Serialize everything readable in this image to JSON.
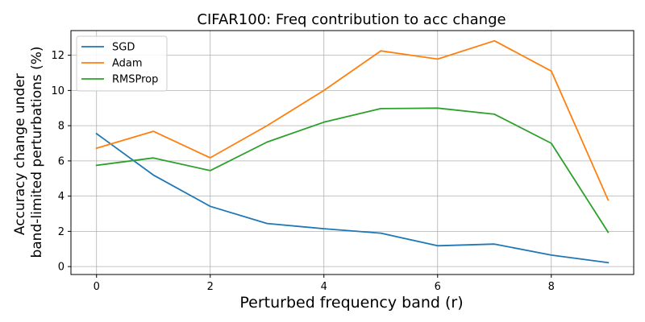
{
  "chart_data": {
    "type": "line",
    "title": "CIFAR100: Freq contribution to acc change",
    "xlabel": "Perturbed frequency band (r)",
    "ylabel_lines": [
      "Accuracy change under",
      "band-limited perturbations (%)"
    ],
    "x": [
      0,
      1,
      2,
      3,
      4,
      5,
      6,
      7,
      8,
      9
    ],
    "xlim": [
      -0.45,
      9.45
    ],
    "ylim": [
      -0.45,
      13.4
    ],
    "xticks": [
      0,
      2,
      4,
      6,
      8
    ],
    "yticks": [
      0,
      2,
      4,
      6,
      8,
      10,
      12
    ],
    "grid": true,
    "legend_position": "top-left",
    "series": [
      {
        "name": "SGD",
        "color": "#1f77b4",
        "values": [
          7.55,
          5.2,
          3.42,
          2.45,
          2.15,
          1.9,
          1.18,
          1.28,
          0.65,
          0.22
        ]
      },
      {
        "name": "Adam",
        "color": "#ff7f0e",
        "values": [
          6.72,
          7.68,
          6.18,
          8.0,
          10.0,
          12.25,
          11.78,
          12.82,
          11.1,
          3.78
        ]
      },
      {
        "name": "RMSProp",
        "color": "#2ca02c",
        "values": [
          5.75,
          6.17,
          5.45,
          7.07,
          8.2,
          8.97,
          9.0,
          8.65,
          7.0,
          1.95
        ]
      }
    ]
  }
}
